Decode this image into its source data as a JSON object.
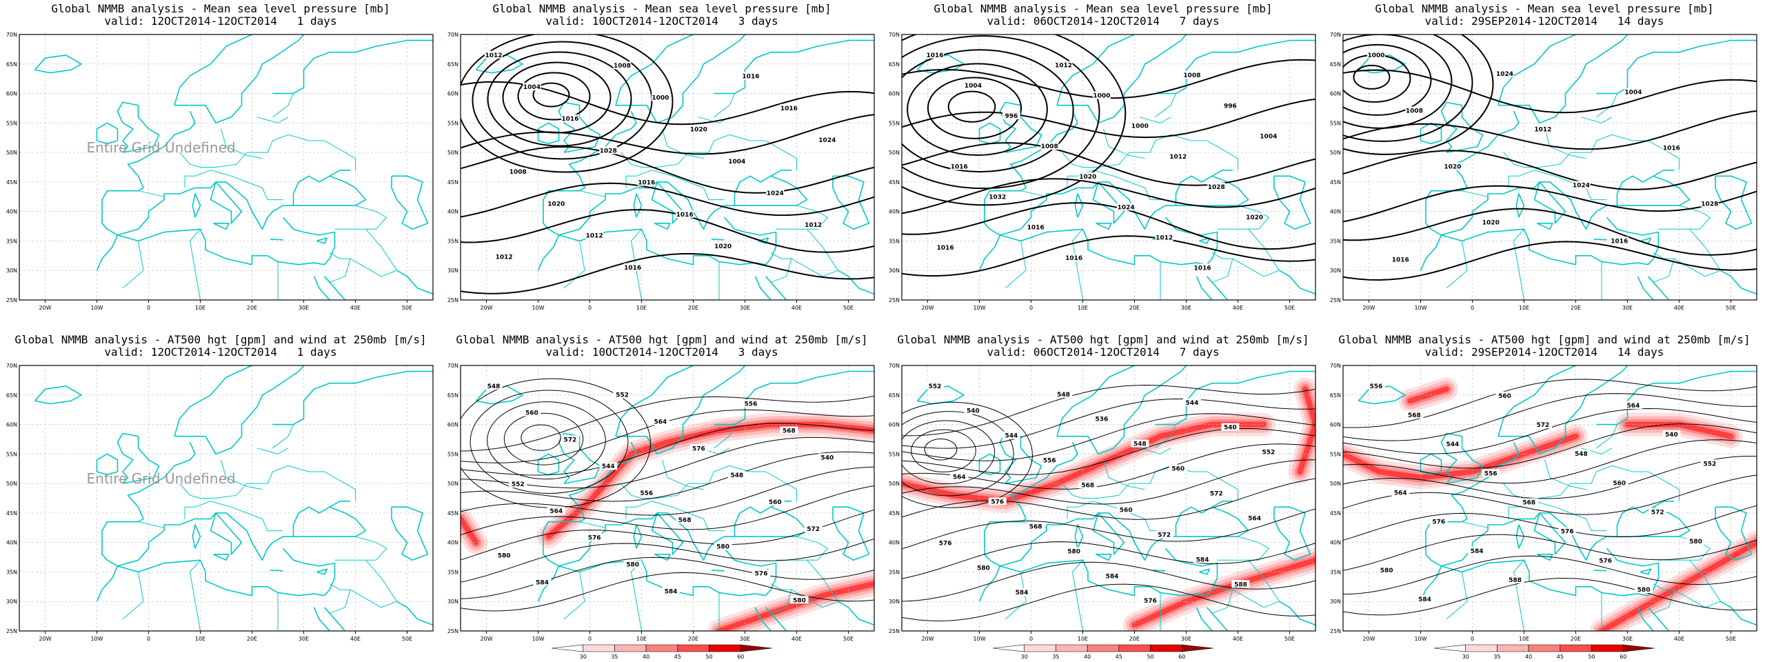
{
  "row_titles": {
    "mslp": "Global NMMB analysis - Mean sea level pressure [mb]",
    "z500": "Global NMMB analysis - AT500 hgt [gpm] and wind at 250mb [m/s]"
  },
  "panels": [
    {
      "row": "mslp",
      "col": 0,
      "valid": "valid: 12OCT2014-12OCT2014   1 days",
      "undefined": true,
      "undefined_text": "Entire Grid Undefined",
      "labels": []
    },
    {
      "row": "mslp",
      "col": 1,
      "valid": "valid: 10OCT2014-12OCT2014   3 days",
      "undefined": false,
      "labels": [
        "1012",
        "1008",
        "1016",
        "1004",
        "1000",
        "1016",
        "1016",
        "1020",
        "1024",
        "1028",
        "1004",
        "1008",
        "1016",
        "1024",
        "1020",
        "1016",
        "1012",
        "1012",
        "1020",
        "1012",
        "1016"
      ]
    },
    {
      "row": "mslp",
      "col": 2,
      "valid": "valid: 06OCT2014-12OCT2014   7 days",
      "undefined": false,
      "labels": [
        "1016",
        "1012",
        "1008",
        "1004",
        "1000",
        "996",
        "996",
        "1000",
        "1004",
        "1008",
        "1012",
        "1016",
        "1020",
        "1028",
        "1032",
        "1024",
        "1020",
        "1016",
        "1012",
        "1016",
        "1016",
        "1016"
      ]
    },
    {
      "row": "mslp",
      "col": 3,
      "valid": "valid: 29SEP2014-12OCT2014   14 days",
      "undefined": false,
      "labels": [
        "1000",
        "1024",
        "1004",
        "1008",
        "1012",
        "1016",
        "1020",
        "1024",
        "1028",
        "1020",
        "1016",
        "1016"
      ]
    },
    {
      "row": "z500",
      "col": 0,
      "valid": "valid: 12OCT2014-12OCT2014   1 days",
      "undefined": true,
      "undefined_text": "Entire Grid Undefined",
      "labels": []
    },
    {
      "row": "z500",
      "col": 1,
      "valid": "valid: 10OCT2014-12OCT2014   3 days",
      "undefined": false,
      "labels": [
        "548",
        "552",
        "556",
        "560",
        "564",
        "568",
        "572",
        "576",
        "540",
        "544",
        "548",
        "552",
        "556",
        "560",
        "564",
        "568",
        "572",
        "576",
        "580",
        "580",
        "580",
        "576",
        "584",
        "584",
        "580"
      ]
    },
    {
      "row": "z500",
      "col": 2,
      "valid": "valid: 06OCT2014-12OCT2014   7 days",
      "undefined": false,
      "labels": [
        "552",
        "548",
        "544",
        "540",
        "536",
        "540",
        "544",
        "548",
        "552",
        "556",
        "560",
        "564",
        "568",
        "572",
        "576",
        "560",
        "564",
        "568",
        "572",
        "576",
        "580",
        "584",
        "580",
        "584",
        "588",
        "584",
        "576"
      ]
    },
    {
      "row": "z500",
      "col": 3,
      "valid": "valid: 29SEP2014-12OCT2014   14 days",
      "undefined": false,
      "labels": [
        "556",
        "560",
        "564",
        "568",
        "572",
        "540",
        "544",
        "548",
        "552",
        "556",
        "560",
        "564",
        "568",
        "572",
        "576",
        "576",
        "580",
        "584",
        "576",
        "580",
        "588",
        "580",
        "584"
      ]
    }
  ],
  "lat_ticks": [
    "70N",
    "65N",
    "60N",
    "55N",
    "50N",
    "45N",
    "40N",
    "35N",
    "30N",
    "25N"
  ],
  "lon_ticks": [
    "20W",
    "10W",
    "0",
    "10E",
    "20E",
    "30E",
    "40E",
    "50E"
  ],
  "colorbar": {
    "ticks": [
      "30",
      "35",
      "40",
      "45",
      "50",
      "60"
    ],
    "colors": [
      "#ffffff",
      "#ffd9d9",
      "#ffb3b3",
      "#ff8080",
      "#ff4d4d",
      "#e60000",
      "#990000"
    ]
  },
  "colors": {
    "coast": "#00c8c8",
    "contour": "#000000",
    "jet": "#ff0000"
  }
}
